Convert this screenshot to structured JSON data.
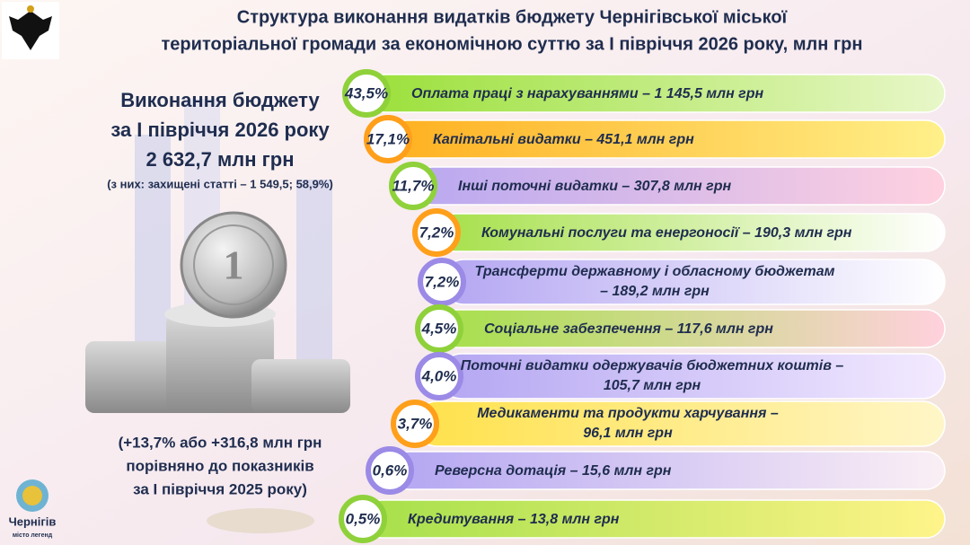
{
  "header": {
    "title_lines": [
      "Структура виконання видатків бюджету Чернігівської міської",
      "територіальної громади за економічною суттю за І півріччя 2026 року, млн грн"
    ]
  },
  "summary": {
    "lines": [
      "Виконання бюджету",
      "за І півріччя 2026 року",
      "2 632,7 млн грн"
    ],
    "note": "(з них: захищені статті – 1 549,5; 58,9%)"
  },
  "comparison": {
    "lines": [
      "(+13,7% або +316,8 млн грн",
      "порівняно до показників",
      "за І півріччя 2025 року)"
    ]
  },
  "logo": {
    "name": "Чернігів",
    "tagline": "місто легенд"
  },
  "items": [
    {
      "percent": "43,5%",
      "text": [
        "Оплата праці з нарахуваннями – 1 145,5 млн грн"
      ]
    },
    {
      "percent": "17,1%",
      "text": [
        "Капітальні видатки – 451,1 млн грн"
      ]
    },
    {
      "percent": "11,7%",
      "text": [
        "Інші поточні видатки – 307,8 млн грн"
      ]
    },
    {
      "percent": "7,2%",
      "text": [
        "Комунальні послуги та енергоносії – 190,3 млн грн"
      ]
    },
    {
      "percent": "7,2%",
      "text": [
        "Трансферти державному і обласному бюджетам",
        "– 189,2 млн грн"
      ]
    },
    {
      "percent": "4,5%",
      "text": [
        "Соціальне забезпечення – 117,6 млн грн"
      ]
    },
    {
      "percent": "4,0%",
      "text": [
        "Поточні видатки одержувачів бюджетних коштів –",
        "105,7 млн грн"
      ]
    },
    {
      "percent": "3,7%",
      "text": [
        "Медикаменти та продукти харчування –",
        "96,1 млн грн"
      ]
    },
    {
      "percent": "0,6%",
      "text": [
        "Реверсна дотація – 15,6 млн грн"
      ]
    },
    {
      "percent": "0,5%",
      "text": [
        "Кредитування – 13,8 млн грн"
      ]
    }
  ]
}
